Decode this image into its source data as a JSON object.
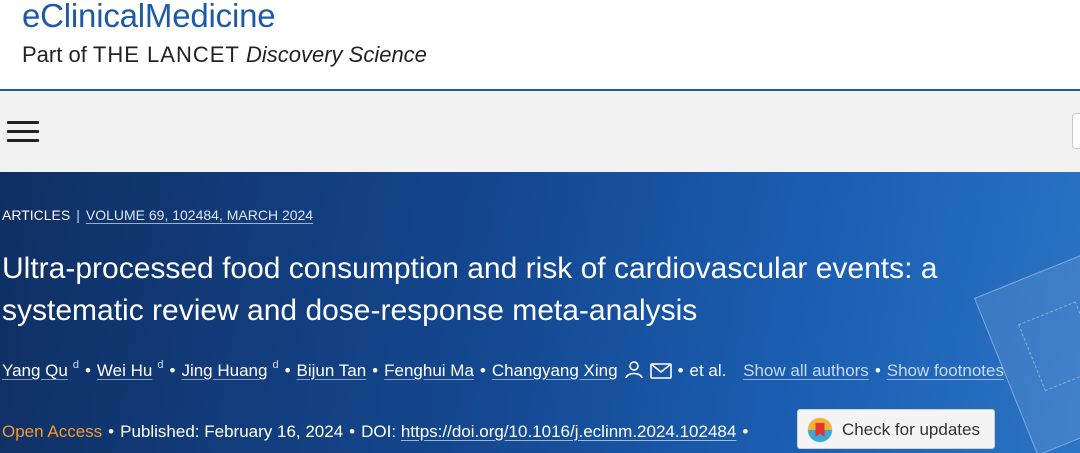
{
  "journal": {
    "name": "eClinicalMedicine",
    "part_prefix": "Part of ",
    "part_publisher": "THE LANCET",
    "part_suffix": " Discovery Science"
  },
  "article": {
    "type": "ARTICLES",
    "separator": "|",
    "volume": "VOLUME 69, 102484, MARCH 2024",
    "title": "Ultra-processed food consumption and risk of cardiovascular events: a systematic review and dose-response meta-analysis",
    "authors": [
      {
        "name": "Yang Qu",
        "sup": "d"
      },
      {
        "name": "Wei Hu",
        "sup": "d"
      },
      {
        "name": "Jing Huang",
        "sup": "d"
      },
      {
        "name": "Bijun Tan",
        "sup": ""
      },
      {
        "name": "Fenghui Ma",
        "sup": ""
      },
      {
        "name": "Changyang Xing",
        "sup": ""
      }
    ],
    "et_al": "et al.",
    "show_all_authors": "Show all authors",
    "show_footnotes": "Show footnotes",
    "open_access": "Open Access",
    "published_label": "Published:",
    "published_date": "February 16, 2024",
    "doi_label": "DOI:",
    "doi_link": "https://doi.org/10.1016/j.eclinm.2024.102484",
    "check_updates": "Check for updates"
  },
  "icons": {
    "menu": "hamburger-menu-icon",
    "person": "person-icon",
    "mail": "envelope-icon",
    "check_updates": "crossmark-icon"
  },
  "colors": {
    "journal_blue": "#1f5aa6",
    "banner_dark": "#0f2f63",
    "banner_light": "#2c74c4",
    "open_access_orange": "#f29a2e"
  }
}
